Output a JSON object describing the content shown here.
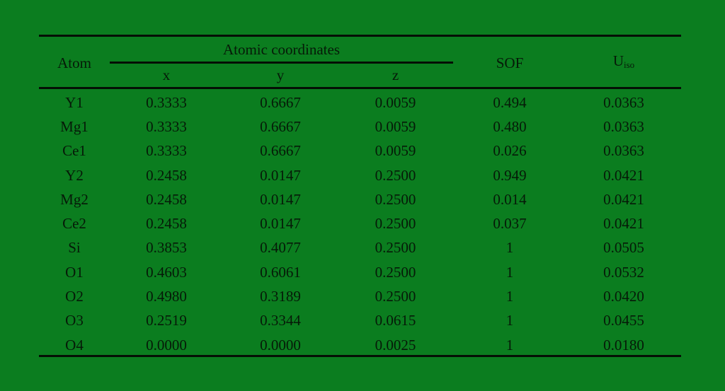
{
  "table": {
    "headers": {
      "atom": "Atom",
      "coords_group": "Atomic coordinates",
      "x": "x",
      "y": "y",
      "z": "z",
      "sof": "SOF",
      "uiso_main": "U",
      "uiso_sub": "iso"
    },
    "rows": [
      {
        "atom": "Y1",
        "x": "0.3333",
        "y": "0.6667",
        "z": "0.0059",
        "sof": "0.494",
        "uiso": "0.0363"
      },
      {
        "atom": "Mg1",
        "x": "0.3333",
        "y": "0.6667",
        "z": "0.0059",
        "sof": "0.480",
        "uiso": "0.0363"
      },
      {
        "atom": "Ce1",
        "x": "0.3333",
        "y": "0.6667",
        "z": "0.0059",
        "sof": "0.026",
        "uiso": "0.0363"
      },
      {
        "atom": "Y2",
        "x": "0.2458",
        "y": "0.0147",
        "z": "0.2500",
        "sof": "0.949",
        "uiso": "0.0421"
      },
      {
        "atom": "Mg2",
        "x": "0.2458",
        "y": "0.0147",
        "z": "0.2500",
        "sof": "0.014",
        "uiso": "0.0421"
      },
      {
        "atom": "Ce2",
        "x": "0.2458",
        "y": "0.0147",
        "z": "0.2500",
        "sof": "0.037",
        "uiso": "0.0421"
      },
      {
        "atom": "Si",
        "x": "0.3853",
        "y": "0.4077",
        "z": "0.2500",
        "sof": "1",
        "uiso": "0.0505"
      },
      {
        "atom": "O1",
        "x": "0.4603",
        "y": "0.6061",
        "z": "0.2500",
        "sof": "1",
        "uiso": "0.0532"
      },
      {
        "atom": "O2",
        "x": "0.4980",
        "y": "0.3189",
        "z": "0.2500",
        "sof": "1",
        "uiso": "0.0420"
      },
      {
        "atom": "O3",
        "x": "0.2519",
        "y": "0.3344",
        "z": "0.0615",
        "sof": "1",
        "uiso": "0.0455"
      },
      {
        "atom": "O4",
        "x": "0.0000",
        "y": "0.0000",
        "z": "0.0025",
        "sof": "1",
        "uiso": "0.0180"
      }
    ]
  },
  "colors": {
    "background": "#0b7d1f",
    "text": "#061a08"
  }
}
